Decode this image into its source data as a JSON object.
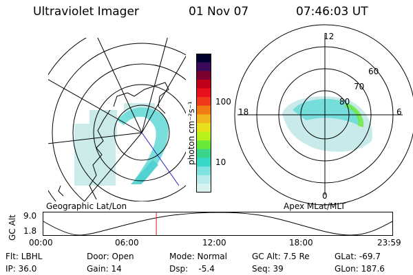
{
  "header": {
    "instrument": "Ultraviolet Imager",
    "date": "01 Nov 07",
    "time": "07:46:03 UT"
  },
  "geo_panel": {
    "label": "Geographic Lat/Lon"
  },
  "colorbar": {
    "unit_label": "photon cm⁻²s⁻¹",
    "ticks": [
      "100",
      "10"
    ],
    "colors": [
      "#000030",
      "#3a0a5a",
      "#7a0030",
      "#c00018",
      "#e8101c",
      "#f03a1c",
      "#f07c14",
      "#f2b41c",
      "#e8e01c",
      "#b8f01c",
      "#6ae83a",
      "#3ad48a",
      "#38d8c8",
      "#7ee2de",
      "#b8ecec",
      "#d8f2f0"
    ]
  },
  "apex_panel": {
    "label": "Apex MLat/MLT",
    "mlt_labels": [
      "12",
      "18",
      "6",
      "0"
    ],
    "lat_labels": [
      "60",
      "70",
      "80"
    ]
  },
  "timeline": {
    "ylabel": "GC Alt",
    "yticks": [
      "9.0",
      "1.8"
    ],
    "xticks": [
      "00:00",
      "06:00",
      "12:00",
      "18:00",
      "23:59"
    ],
    "marker_color": "#e01c1c"
  },
  "footer": {
    "flt": "Flt: LBHL",
    "door": "Door: Open",
    "mode": "Mode: Normal",
    "gc_alt": "GC Alt: 7.5 Re",
    "glat": "GLat: -69.7",
    "ip": "IP: 36.0",
    "gain": "Gain: 14",
    "dsp": "Dsp:    -5.4",
    "seq": "Seq: 39",
    "glon": "GLon: 187.6"
  }
}
